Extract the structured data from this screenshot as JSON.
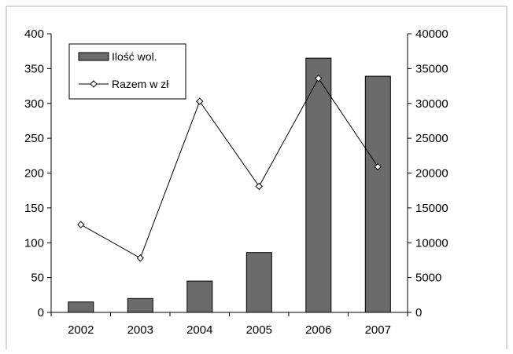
{
  "chart_data": {
    "type": "bar",
    "title": "",
    "xlabel": "",
    "ylabel": "",
    "categories": [
      "2002",
      "2003",
      "2004",
      "2005",
      "2006",
      "2007"
    ],
    "series": [
      {
        "name": "Ilość wol.",
        "type": "bar",
        "axis": "left",
        "values": [
          15,
          20,
          45,
          86,
          365,
          339
        ],
        "color": "#6b6b6b"
      },
      {
        "name": "Razem w zł",
        "type": "line",
        "axis": "right",
        "marker": "diamond",
        "values": [
          12600,
          7800,
          30300,
          18100,
          33600,
          20900
        ],
        "color": "#000000"
      }
    ],
    "ylim": [
      0,
      400
    ],
    "y_ticks": [
      "0",
      "50",
      "100",
      "150",
      "200",
      "250",
      "300",
      "350",
      "400"
    ],
    "y2lim": [
      0,
      40000
    ],
    "y2_ticks": [
      "0",
      "5000",
      "10000",
      "15000",
      "20000",
      "25000",
      "30000",
      "35000",
      "40000"
    ],
    "grid": false,
    "legend_position": "top-left"
  }
}
